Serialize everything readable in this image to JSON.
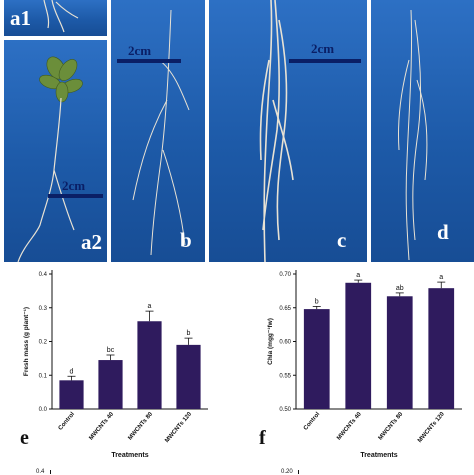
{
  "photos": {
    "a1": {
      "label": "a1"
    },
    "a2": {
      "label": "a2",
      "scale": "2cm"
    },
    "b": {
      "label": "b",
      "scale": "2cm"
    },
    "c": {
      "label": "c",
      "scale": "2cm"
    },
    "d": {
      "label": "d"
    }
  },
  "colors": {
    "photo_bg": "#1f5fb0",
    "bar_fill": "#2f1b5e",
    "scale_bar": "#0a1f66"
  },
  "chart_data": [
    {
      "type": "bar",
      "panel_letter": "e",
      "categories": [
        "Control",
        "MWCNTs 40",
        "MWCNTs 80",
        "MWCNTs 120"
      ],
      "values": [
        0.085,
        0.145,
        0.26,
        0.19
      ],
      "errors": [
        0.012,
        0.015,
        0.03,
        0.02
      ],
      "letters": [
        "d",
        "bc",
        "a",
        "b"
      ],
      "ylabel": "Fresh mass (g plant⁻¹)",
      "xlabel": "Treatments",
      "ylim": [
        0.0,
        0.4
      ],
      "yticks": [
        "0.0",
        "0.1",
        "0.2",
        "0.3",
        "0.4"
      ]
    },
    {
      "type": "bar",
      "panel_letter": "f",
      "categories": [
        "Control",
        "MWCNTs 40",
        "MWCNTs 80",
        "MWCNTs 120"
      ],
      "values": [
        0.648,
        0.687,
        0.667,
        0.679
      ],
      "errors": [
        0.004,
        0.004,
        0.005,
        0.009
      ],
      "letters": [
        "b",
        "a",
        "ab",
        "a"
      ],
      "ylabel": "Chla (mgg⁻¹fw)",
      "xlabel": "Treatments",
      "ylim": [
        0.5,
        0.7
      ],
      "yticks": [
        "0.50",
        "0.55",
        "0.60",
        "0.65",
        "0.70"
      ]
    }
  ],
  "fragments": {
    "left_tick": "0.4",
    "right_tick": "0.20"
  }
}
